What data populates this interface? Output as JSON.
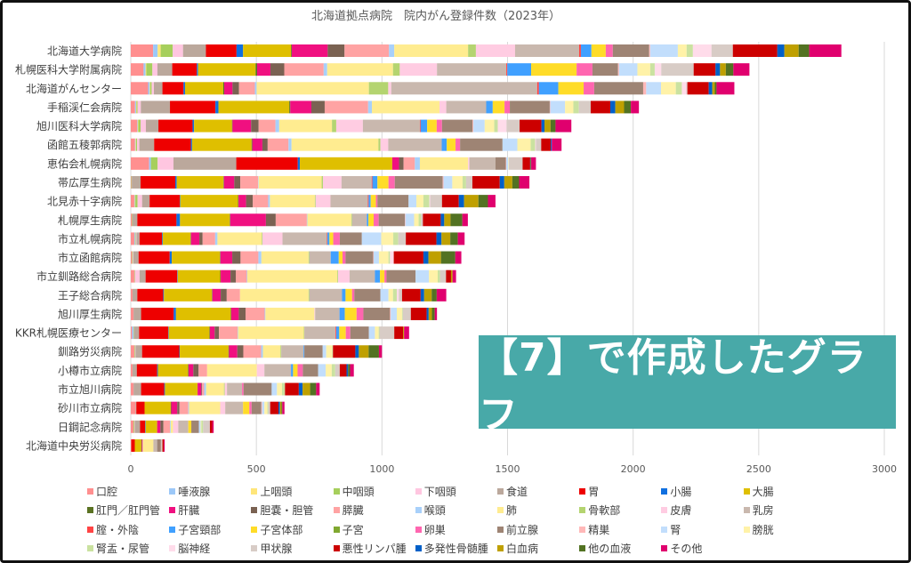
{
  "overlay_label": "【7】で作成したグラフ",
  "chart_data": {
    "type": "bar",
    "orientation": "horizontal",
    "stacked": true,
    "title": "北海道拠点病院　院内がん登録件数（2023年）",
    "xlabel": "",
    "ylabel": "",
    "xlim": [
      0,
      3000
    ],
    "xticks": [
      "0",
      "500",
      "1000",
      "1500",
      "2000",
      "2500",
      "3000"
    ],
    "grid": true,
    "legend_position": "bottom",
    "categories": [
      "北海道大学病院",
      "札幌医科大学附属病院",
      "北海道がんセンター",
      "手稲渓仁会病院",
      "旭川医科大学病院",
      "函館五稜郭病院",
      "恵佑会札幌病院",
      "帯広厚生病院",
      "北見赤十字病院",
      "札幌厚生病院",
      "市立札幌病院",
      "市立函館病院",
      "市立釧路総合病院",
      "王子総合病院",
      "旭川厚生病院",
      "KKR札幌医療センター",
      "釧路労災病院",
      "小樽市立病院",
      "市立旭川病院",
      "砂川市立病院",
      "日鋼記念病院",
      "北海道中央労災病院"
    ],
    "series": [
      {
        "name": "口腔",
        "color": "#FF8F8F"
      },
      {
        "name": "唾液腺",
        "color": "#9CC8F8"
      },
      {
        "name": "上咽頭",
        "color": "#FFE67A"
      },
      {
        "name": "中咽頭",
        "color": "#A6CF5C"
      },
      {
        "name": "下咽頭",
        "color": "#FFC6E0"
      },
      {
        "name": "食道",
        "color": "#BBA89C"
      },
      {
        "name": "胃",
        "color": "#EE0000"
      },
      {
        "name": "小腸",
        "color": "#1070E0"
      },
      {
        "name": "大腸",
        "color": "#DFBF00"
      },
      {
        "name": "肛門／肛門管",
        "color": "#5A7222"
      },
      {
        "name": "肝臓",
        "color": "#F01080"
      },
      {
        "name": "胆嚢・胆管",
        "color": "#7A6252"
      },
      {
        "name": "膵臓",
        "color": "#FFA3A3"
      },
      {
        "name": "喉頭",
        "color": "#A8D0FA"
      },
      {
        "name": "肺",
        "color": "#FFEC90"
      },
      {
        "name": "骨軟部",
        "color": "#B4D470"
      },
      {
        "name": "皮膚",
        "color": "#FFCCE2"
      },
      {
        "name": "乳房",
        "color": "#C9B8AE"
      },
      {
        "name": "腟・外陰",
        "color": "#FF4444"
      },
      {
        "name": "子宮頸部",
        "color": "#40A0FF"
      },
      {
        "name": "子宮体部",
        "color": "#FFDC28"
      },
      {
        "name": "子宮",
        "color": "#80A830"
      },
      {
        "name": "卵巣",
        "color": "#FF66B0"
      },
      {
        "name": "前立腺",
        "color": "#9E8474"
      },
      {
        "name": "精巣",
        "color": "#FFB8B8"
      },
      {
        "name": "腎",
        "color": "#C2DEFC"
      },
      {
        "name": "膀胱",
        "color": "#FFF2A8"
      },
      {
        "name": "腎盂・尿管",
        "color": "#CAE2A0"
      },
      {
        "name": "脳神経",
        "color": "#FFDCEA"
      },
      {
        "name": "甲状腺",
        "color": "#D8CCC6"
      },
      {
        "name": "悪性リンパ腫",
        "color": "#CC0000"
      },
      {
        "name": "多発性骨髄腫",
        "color": "#0060C8"
      },
      {
        "name": "白血病",
        "color": "#BFA000"
      },
      {
        "name": "他の血液",
        "color": "#527222"
      },
      {
        "name": "その他",
        "color": "#E0006E"
      }
    ],
    "values": [
      [
        89,
        18,
        12,
        48,
        41,
        91,
        122,
        26,
        191,
        3,
        143,
        67,
        177,
        21,
        294,
        31,
        156,
        255,
        7,
        42,
        57,
        0,
        28,
        145,
        4,
        110,
        35,
        25,
        74,
        85,
        177,
        28,
        57,
        42,
        128
      ],
      [
        51,
        8,
        3,
        24,
        20,
        59,
        98,
        5,
        229,
        6,
        53,
        55,
        157,
        14,
        262,
        27,
        148,
        276,
        4,
        95,
        181,
        0,
        63,
        102,
        4,
        73,
        51,
        18,
        26,
        129,
        87,
        18,
        23,
        30,
        64
      ],
      [
        69,
        6,
        2,
        6,
        9,
        34,
        84,
        6,
        152,
        4,
        33,
        26,
        63,
        7,
        447,
        77,
        12,
        581,
        7,
        77,
        101,
        0,
        42,
        195,
        12,
        59,
        59,
        24,
        18,
        4,
        85,
        14,
        10,
        7,
        71
      ],
      [
        17,
        4,
        2,
        4,
        13,
        116,
        181,
        12,
        282,
        4,
        84,
        53,
        173,
        15,
        269,
        0,
        27,
        159,
        0,
        26,
        47,
        0,
        21,
        159,
        2,
        59,
        33,
        22,
        0,
        47,
        78,
        20,
        35,
        27,
        32
      ],
      [
        26,
        2,
        2,
        9,
        21,
        50,
        136,
        6,
        151,
        2,
        74,
        30,
        67,
        15,
        210,
        17,
        106,
        227,
        3,
        26,
        38,
        0,
        21,
        122,
        3,
        45,
        38,
        14,
        35,
        52,
        87,
        12,
        24,
        20,
        63
      ],
      [
        17,
        2,
        2,
        4,
        9,
        59,
        146,
        5,
        237,
        3,
        40,
        21,
        83,
        12,
        346,
        8,
        31,
        213,
        0,
        20,
        35,
        0,
        18,
        169,
        0,
        59,
        53,
        18,
        3,
        21,
        38,
        4,
        0,
        0,
        39
      ],
      [
        73,
        7,
        0,
        27,
        63,
        250,
        245,
        8,
        368,
        0,
        27,
        18,
        45,
        20,
        192,
        0,
        5,
        104,
        0,
        0,
        0,
        0,
        0,
        41,
        2,
        8,
        2,
        0,
        0,
        55,
        30,
        2,
        2,
        0,
        19
      ],
      [
        2,
        0,
        0,
        2,
        0,
        35,
        138,
        6,
        186,
        2,
        41,
        24,
        71,
        2,
        251,
        5,
        74,
        120,
        3,
        20,
        44,
        0,
        25,
        191,
        3,
        35,
        41,
        14,
        0,
        25,
        109,
        18,
        32,
        27,
        41
      ],
      [
        14,
        2,
        2,
        9,
        18,
        30,
        120,
        2,
        230,
        2,
        30,
        27,
        61,
        7,
        179,
        3,
        59,
        149,
        3,
        8,
        21,
        0,
        6,
        124,
        0,
        31,
        28,
        24,
        3,
        47,
        67,
        21,
        57,
        38,
        30
      ],
      [
        5,
        0,
        0,
        2,
        0,
        19,
        156,
        14,
        198,
        2,
        142,
        39,
        124,
        2,
        175,
        3,
        0,
        59,
        0,
        6,
        21,
        0,
        20,
        104,
        2,
        35,
        18,
        9,
        0,
        8,
        71,
        14,
        25,
        47,
        22
      ],
      [
        14,
        3,
        0,
        3,
        3,
        12,
        89,
        3,
        111,
        2,
        33,
        13,
        50,
        9,
        176,
        3,
        80,
        177,
        2,
        8,
        15,
        0,
        26,
        88,
        0,
        77,
        48,
        20,
        0,
        30,
        122,
        20,
        35,
        30,
        27
      ],
      [
        5,
        0,
        0,
        3,
        2,
        21,
        124,
        8,
        192,
        2,
        47,
        33,
        71,
        12,
        188,
        3,
        0,
        85,
        0,
        32,
        15,
        0,
        12,
        110,
        2,
        21,
        38,
        6,
        15,
        0,
        118,
        20,
        50,
        57,
        24
      ],
      [
        14,
        0,
        0,
        2,
        19,
        24,
        126,
        2,
        169,
        2,
        39,
        21,
        44,
        2,
        358,
        3,
        46,
        101,
        0,
        20,
        18,
        0,
        8,
        116,
        0,
        53,
        35,
        9,
        0,
        24,
        20,
        0,
        6,
        0,
        14
      ],
      [
        7,
        0,
        0,
        0,
        0,
        19,
        103,
        3,
        191,
        2,
        33,
        24,
        53,
        0,
        273,
        3,
        0,
        130,
        0,
        14,
        26,
        0,
        9,
        104,
        0,
        32,
        18,
        15,
        8,
        13,
        74,
        14,
        30,
        20,
        38
      ],
      [
        11,
        0,
        0,
        0,
        0,
        30,
        130,
        9,
        218,
        2,
        30,
        27,
        76,
        3,
        195,
        0,
        3,
        97,
        0,
        21,
        47,
        0,
        27,
        106,
        3,
        24,
        21,
        3,
        0,
        32,
        63,
        8,
        13,
        11,
        9
      ],
      [
        5,
        6,
        0,
        2,
        0,
        20,
        116,
        2,
        162,
        2,
        19,
        17,
        74,
        2,
        262,
        2,
        0,
        124,
        3,
        12,
        26,
        0,
        18,
        74,
        0,
        24,
        15,
        3,
        0,
        59,
        35,
        0,
        4,
        0,
        20
      ],
      [
        14,
        0,
        0,
        3,
        2,
        26,
        148,
        2,
        194,
        2,
        33,
        24,
        71,
        7,
        70,
        3,
        0,
        89,
        0,
        3,
        0,
        0,
        0,
        73,
        0,
        14,
        24,
        3,
        0,
        0,
        89,
        14,
        39,
        41,
        12
      ],
      [
        7,
        0,
        0,
        0,
        0,
        17,
        81,
        3,
        120,
        2,
        19,
        21,
        34,
        0,
        198,
        0,
        30,
        106,
        0,
        8,
        18,
        0,
        21,
        61,
        0,
        30,
        24,
        14,
        0,
        18,
        27,
        6,
        0,
        8,
        15
      ],
      [
        11,
        0,
        0,
        0,
        0,
        30,
        92,
        3,
        130,
        0,
        15,
        3,
        8,
        8,
        71,
        3,
        9,
        60,
        0,
        0,
        0,
        0,
        6,
        112,
        0,
        21,
        20,
        12,
        0,
        0,
        55,
        15,
        30,
        24,
        14
      ],
      [
        19,
        0,
        0,
        0,
        0,
        3,
        33,
        0,
        104,
        2,
        24,
        9,
        35,
        3,
        124,
        0,
        20,
        71,
        0,
        0,
        25,
        0,
        9,
        39,
        3,
        9,
        12,
        3,
        0,
        8,
        33,
        6,
        6,
        3,
        9
      ],
      [
        11,
        0,
        0,
        3,
        2,
        21,
        20,
        2,
        46,
        0,
        13,
        12,
        26,
        3,
        9,
        0,
        21,
        40,
        0,
        0,
        12,
        0,
        0,
        30,
        0,
        7,
        3,
        7,
        0,
        27,
        9,
        0,
        0,
        0,
        6
      ],
      [
        2,
        0,
        0,
        0,
        0,
        0,
        14,
        0,
        26,
        2,
        2,
        0,
        3,
        0,
        41,
        0,
        0,
        15,
        0,
        0,
        0,
        0,
        0,
        15,
        0,
        0,
        0,
        0,
        0,
        6,
        5,
        0,
        0,
        0,
        4
      ]
    ]
  }
}
